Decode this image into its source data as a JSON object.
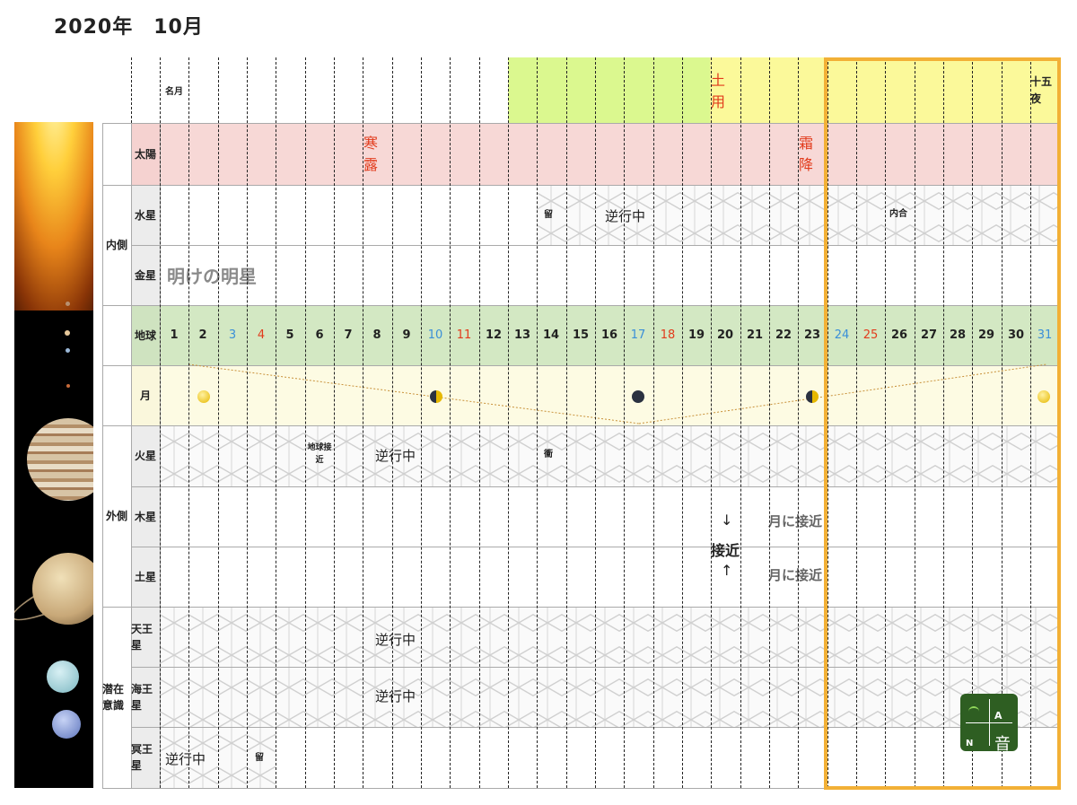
{
  "title": "2020年　10月",
  "top_header": {
    "meigetsu": "名月",
    "doyo": "土用",
    "jugoya": "十五夜"
  },
  "rows": {
    "sun": "太陽",
    "mercury": "水星",
    "venus": "金星",
    "earth": "地球",
    "moon": "月",
    "mars": "火星",
    "jupiter": "木星",
    "saturn": "土星",
    "uranus": "天王星",
    "neptune": "海王星",
    "pluto": "冥王星"
  },
  "groups": {
    "inner": "内側",
    "outer": "外側",
    "latent": "潜在意識"
  },
  "sekki": {
    "kanro": "寒露",
    "soko": "霜降"
  },
  "events": {
    "mercury_station": "留",
    "mercury_retro": "逆行中",
    "mercury_conj": "内合",
    "venus_morning": "明けの明星",
    "mars_close": "地球接近",
    "mars_retro": "逆行中",
    "mars_opposition": "衝",
    "approach_arrow_down": "↓",
    "approach": "接近",
    "approach_arrow_up": "↑",
    "jupiter_moon": "月に接近",
    "saturn_moon": "月に接近",
    "uranus_retro": "逆行中",
    "neptune_retro": "逆行中",
    "pluto_retro": "逆行中",
    "pluto_station": "留"
  },
  "days": [
    "1",
    "2",
    "3",
    "4",
    "5",
    "6",
    "7",
    "8",
    "9",
    "10",
    "11",
    "12",
    "13",
    "14",
    "15",
    "16",
    "17",
    "18",
    "19",
    "20",
    "21",
    "22",
    "23",
    "24",
    "25",
    "26",
    "27",
    "28",
    "29",
    "30",
    "31"
  ],
  "day_colors": {
    "3": "#3a8fd8",
    "4": "#e23b1c",
    "10": "#3a8fd8",
    "11": "#e23b1c",
    "17": "#3a8fd8",
    "18": "#e23b1c",
    "24": "#3a8fd8",
    "25": "#e23b1c",
    "31": "#3a8fd8"
  },
  "colors": {
    "sun_band": "#f7d8d6",
    "earth_band": "#d3e8c3",
    "moon_band": "#fdfbe3",
    "doyo_green": "#dbf88f",
    "doyo_yellow": "#fbf99a",
    "highlight": "#f2b036"
  },
  "logo": {
    "a": "A",
    "n": "N",
    "kanji": "音"
  }
}
